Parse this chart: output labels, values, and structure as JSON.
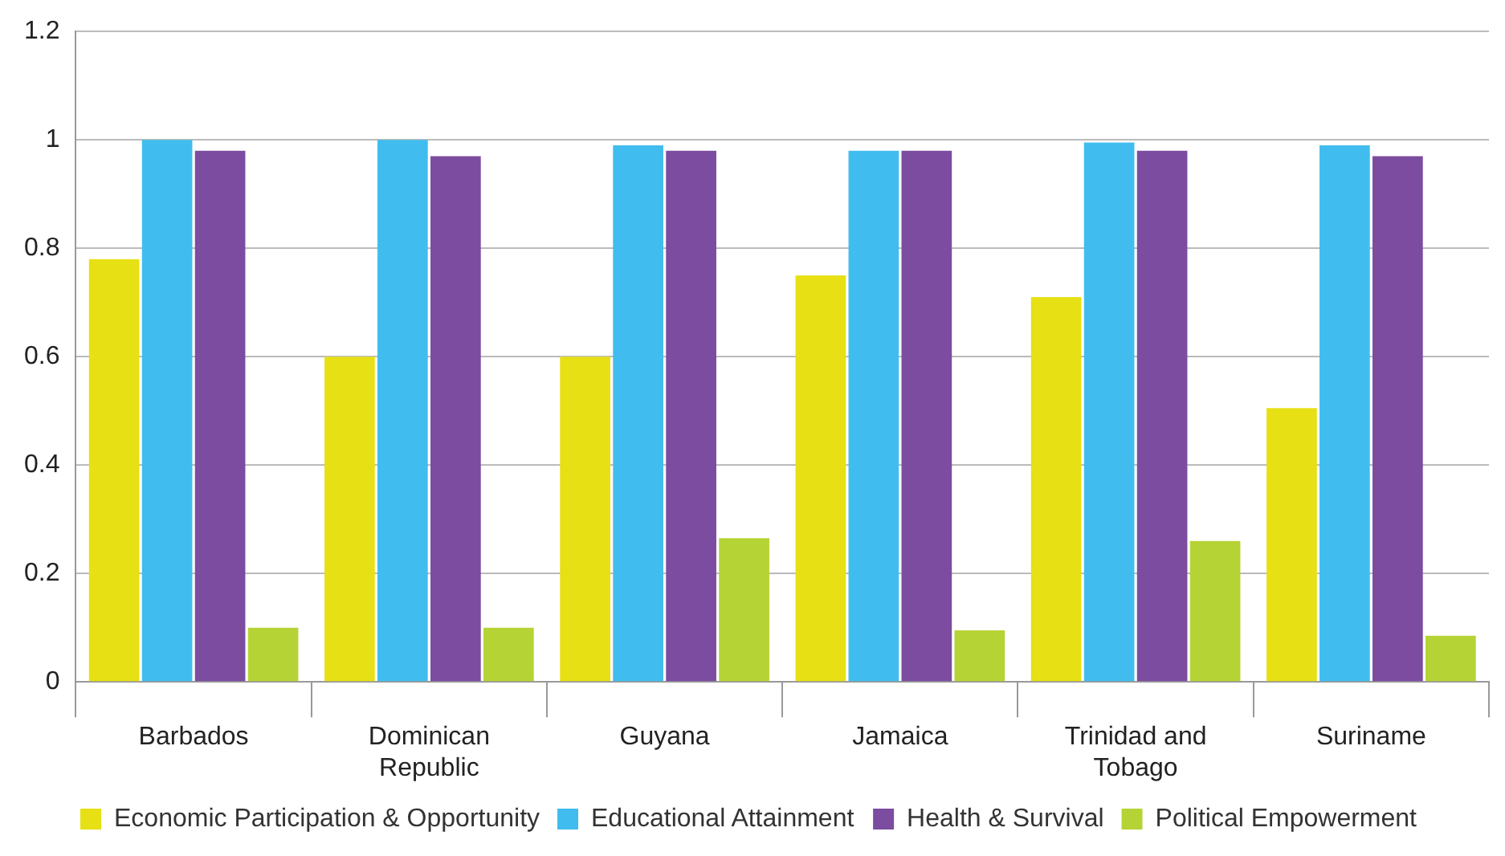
{
  "chart_data": {
    "type": "bar",
    "categories": [
      "Barbados",
      "Dominican Republic",
      "Guyana",
      "Jamaica",
      "Trinidad and Tobago",
      "Suriname"
    ],
    "series": [
      {
        "name": "Economic Participation & Opportunity",
        "color": "#e6e014",
        "values": [
          0.78,
          0.6,
          0.6,
          0.75,
          0.71,
          0.505
        ]
      },
      {
        "name": "Educational Attainment",
        "color": "#40bdee",
        "values": [
          1.0,
          1.0,
          0.99,
          0.98,
          0.995,
          0.99
        ]
      },
      {
        "name": "Health & Survival",
        "color": "#7b4c9f",
        "values": [
          0.98,
          0.97,
          0.98,
          0.98,
          0.98,
          0.97
        ]
      },
      {
        "name": "Political Empowerment",
        "color": "#b5d334",
        "values": [
          0.1,
          0.1,
          0.265,
          0.095,
          0.26,
          0.085
        ]
      }
    ],
    "ylim": [
      0,
      1.2
    ],
    "yticks": [
      0,
      0.2,
      0.4,
      0.6,
      0.8,
      1,
      1.2
    ],
    "grid": "y",
    "legend": "bottom"
  }
}
